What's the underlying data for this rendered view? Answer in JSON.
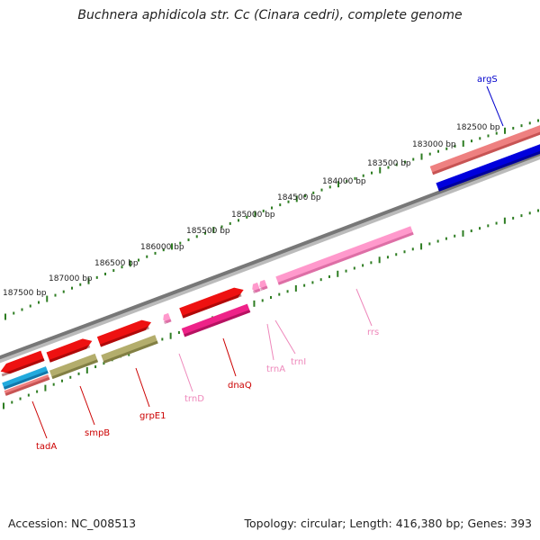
{
  "header": {
    "title": "Buchnera aphidicola str. Cc (Cinara cedri), complete genome"
  },
  "footer": {
    "accession": "Accession: NC_008513",
    "topology": "Topology: circular; Length: 416,380 bp; Genes: 393"
  },
  "scale": {
    "unit": "bp",
    "labels": [
      "182500 bp",
      "183000 bp",
      "183500 bp",
      "184000 bp",
      "184500 bp",
      "185000 bp",
      "185500 bp",
      "186000 bp",
      "186500 bp",
      "187000 bp",
      "187500 bp"
    ]
  },
  "colors": {
    "backbone": "#888888",
    "tick": "#2e7d22",
    "protein_coding": "#ee1111",
    "tRNA": "#ff99cc",
    "rRNA": "#ff99cc",
    "argS_gene": "#0000dd",
    "cog_red": "#ee8080",
    "cog_olive": "#b3ad6c",
    "cog_cyan": "#22aadd",
    "cog_magenta": "#ee2288",
    "label_red": "#cc0000",
    "label_pink": "#ee88bb",
    "label_blue": "#0000cc"
  },
  "genes": [
    {
      "name": "argS",
      "color": "#0000cc"
    },
    {
      "name": "tadA",
      "color": "#cc0000"
    },
    {
      "name": "smpB",
      "color": "#cc0000"
    },
    {
      "name": "grpE1",
      "color": "#cc0000"
    },
    {
      "name": "trnD",
      "color": "#ee88bb"
    },
    {
      "name": "dnaQ",
      "color": "#cc0000"
    },
    {
      "name": "trnA",
      "color": "#ee88bb"
    },
    {
      "name": "trnI",
      "color": "#ee88bb"
    },
    {
      "name": "rrs",
      "color": "#ee88bb"
    }
  ]
}
